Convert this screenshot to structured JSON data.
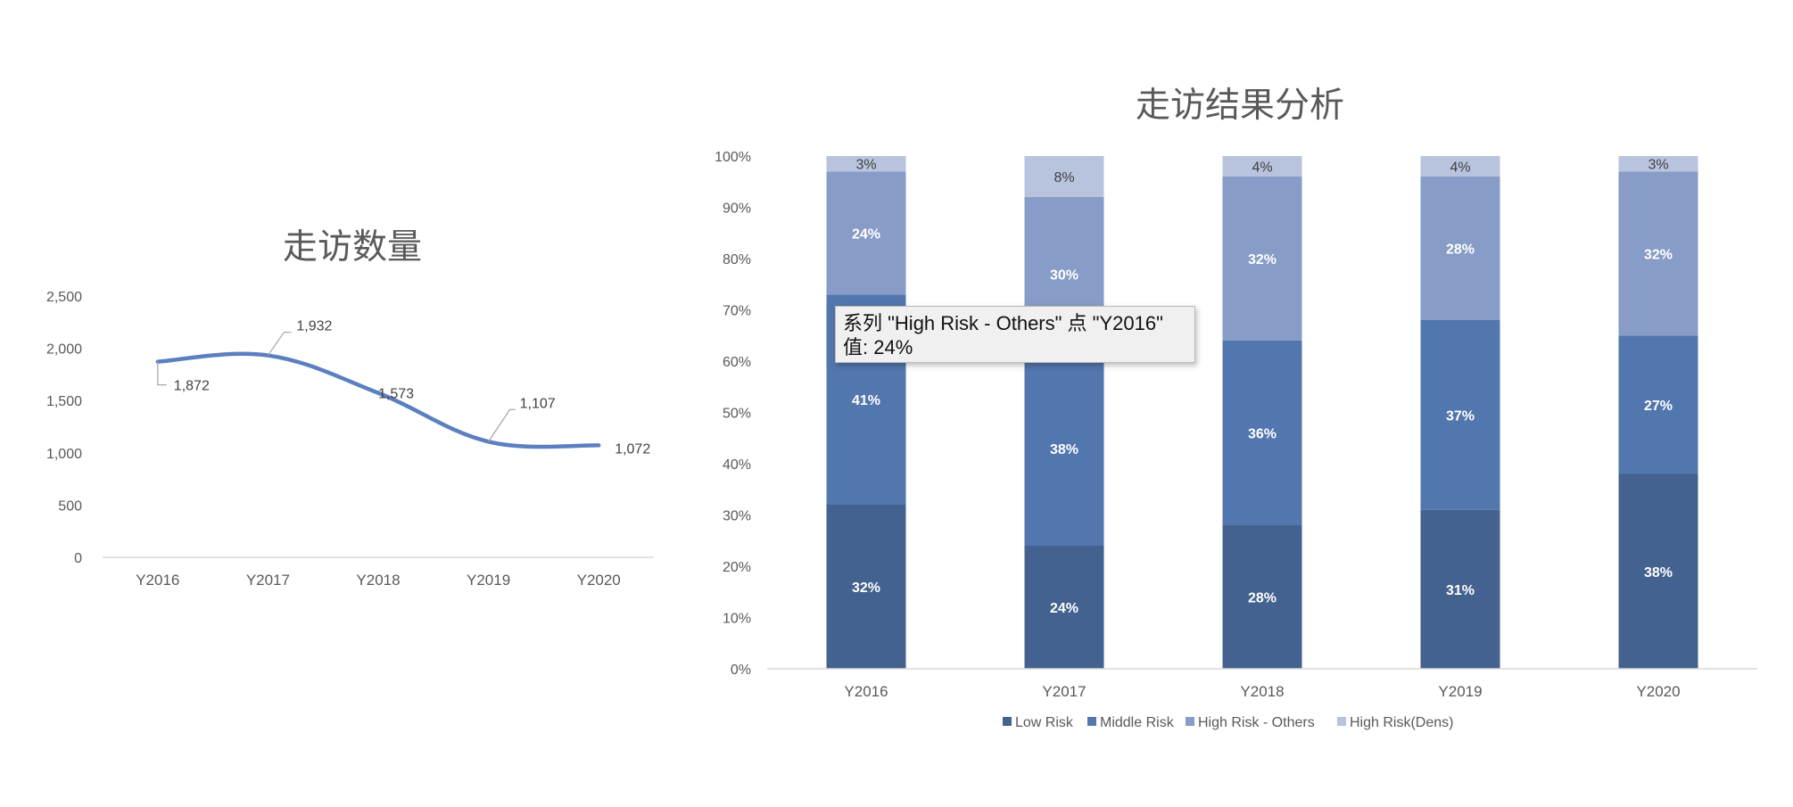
{
  "chart_data": [
    {
      "type": "line",
      "title": "走访数量",
      "categories": [
        "Y2016",
        "Y2017",
        "Y2018",
        "Y2019",
        "Y2020"
      ],
      "values": [
        1872,
        1932,
        1573,
        1107,
        1072
      ],
      "value_labels": [
        "1,872",
        "1,932",
        "1,573",
        "1,107",
        "1,072"
      ],
      "ylim": [
        0,
        2500
      ],
      "yticks": [
        "0",
        "500",
        "1,000",
        "1,500",
        "2,000",
        "2,500"
      ],
      "smooth": true,
      "grid": false,
      "color": "#5b7fbf"
    },
    {
      "type": "bar",
      "stacked": "percent",
      "title": "走访结果分析",
      "categories": [
        "Y2016",
        "Y2017",
        "Y2018",
        "Y2019",
        "Y2020"
      ],
      "ylim": [
        0,
        100
      ],
      "yticks": [
        "0%",
        "10%",
        "20%",
        "30%",
        "40%",
        "50%",
        "60%",
        "70%",
        "80%",
        "90%",
        "100%"
      ],
      "legend_position": "bottom",
      "series": [
        {
          "name": "Low Risk",
          "values": [
            32,
            24,
            28,
            31,
            38
          ],
          "labels": [
            "32%",
            "24%",
            "28%",
            "31%",
            "38%"
          ],
          "color": "#44628f"
        },
        {
          "name": "Middle Risk",
          "values": [
            41,
            38,
            36,
            37,
            27
          ],
          "labels": [
            "41%",
            "38%",
            "36%",
            "37%",
            "27%"
          ],
          "color": "#5276ae"
        },
        {
          "name": "High Risk - Others",
          "values": [
            24,
            30,
            32,
            28,
            32
          ],
          "labels": [
            "24%",
            "30%",
            "32%",
            "28%",
            "32%"
          ],
          "color": "#879cc6"
        },
        {
          "name": "High Risk(Dens)",
          "values": [
            3,
            8,
            4,
            4,
            3
          ],
          "labels": [
            "3%",
            "8%",
            "4%",
            "4%",
            "3%"
          ],
          "color": "#b8c4de"
        }
      ]
    }
  ],
  "tooltip": {
    "line1": "系列 \"High Risk - Others\" 点 \"Y2016\"",
    "line2": "值: 24%"
  }
}
